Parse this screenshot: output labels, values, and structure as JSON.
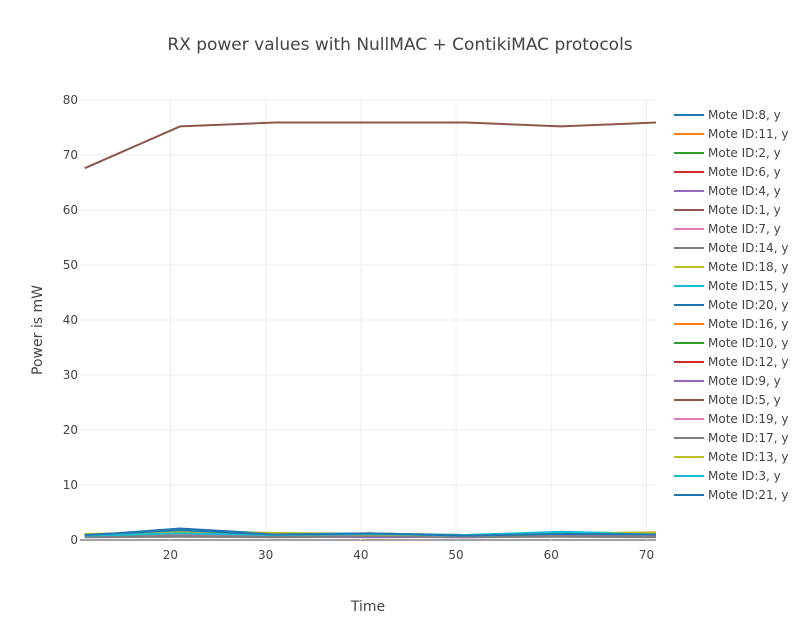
{
  "chart_data": {
    "type": "line",
    "title": "RX power values with NullMAC + ContikiMAC protocols",
    "xlabel": "Time",
    "ylabel": "Power is mW",
    "xlim": [
      10.5,
      71
    ],
    "ylim": [
      0,
      80
    ],
    "x_ticks": [
      "20",
      "30",
      "40",
      "50",
      "60",
      "70"
    ],
    "y_ticks": [
      "0",
      "10",
      "20",
      "30",
      "40",
      "50",
      "60",
      "70",
      "80"
    ],
    "grid": true,
    "legend_position": "right",
    "x": [
      11,
      21,
      31,
      41,
      51,
      61,
      71
    ],
    "series": [
      {
        "name": "Mote ID:8, y",
        "color": "#1f77b4",
        "values": [
          0.8,
          1.1,
          0.9,
          1.0,
          0.8,
          0.9,
          1.0
        ]
      },
      {
        "name": "Mote ID:11, y",
        "color": "#ff7f0e",
        "values": [
          1.0,
          1.3,
          1.1,
          1.2,
          0.9,
          1.0,
          1.1
        ]
      },
      {
        "name": "Mote ID:2, y",
        "color": "#2ca02c",
        "values": [
          0.9,
          1.5,
          1.0,
          1.1,
          0.8,
          1.2,
          0.9
        ]
      },
      {
        "name": "Mote ID:6, y",
        "color": "#d62728",
        "values": [
          0.7,
          1.2,
          0.8,
          1.0,
          0.7,
          0.9,
          0.8
        ]
      },
      {
        "name": "Mote ID:4, y",
        "color": "#9467bd",
        "values": [
          0.6,
          1.0,
          0.7,
          0.6,
          0.5,
          0.7,
          0.6
        ]
      },
      {
        "name": "Mote ID:1, y",
        "color": "#8c564b",
        "values": [
          67.6,
          75.2,
          75.9,
          75.9,
          75.9,
          75.2,
          75.9
        ]
      },
      {
        "name": "Mote ID:7, y",
        "color": "#e377c2",
        "values": [
          0.8,
          1.0,
          0.9,
          0.8,
          0.7,
          0.8,
          0.9
        ]
      },
      {
        "name": "Mote ID:14, y",
        "color": "#7f7f7f",
        "values": [
          0.5,
          0.6,
          0.5,
          0.6,
          0.5,
          0.6,
          0.5
        ]
      },
      {
        "name": "Mote ID:18, y",
        "color": "#bcbd22",
        "values": [
          1.0,
          1.6,
          1.3,
          1.1,
          0.9,
          1.2,
          1.4
        ]
      },
      {
        "name": "Mote ID:15, y",
        "color": "#17becf",
        "values": [
          0.9,
          1.3,
          1.0,
          1.2,
          0.9,
          1.5,
          1.1
        ]
      },
      {
        "name": "Mote ID:20, y",
        "color": "#1f77b4",
        "values": [
          0.8,
          2.1,
          1.1,
          1.0,
          0.8,
          0.9,
          1.0
        ]
      },
      {
        "name": "Mote ID:16, y",
        "color": "#ff7f0e",
        "values": [
          0.9,
          1.2,
          1.0,
          0.9,
          0.8,
          1.0,
          0.9
        ]
      },
      {
        "name": "Mote ID:10, y",
        "color": "#2ca02c",
        "values": [
          0.7,
          1.1,
          0.9,
          0.8,
          0.7,
          0.8,
          0.9
        ]
      },
      {
        "name": "Mote ID:12, y",
        "color": "#d62728",
        "values": [
          0.8,
          1.0,
          0.8,
          0.9,
          0.7,
          0.9,
          0.8
        ]
      },
      {
        "name": "Mote ID:9, y",
        "color": "#9467bd",
        "values": [
          0.6,
          0.9,
          0.7,
          0.5,
          0.6,
          0.7,
          0.6
        ]
      },
      {
        "name": "Mote ID:5, y",
        "color": "#8c564b",
        "values": [
          0.9,
          1.0,
          0.9,
          1.0,
          0.8,
          0.9,
          1.0
        ]
      },
      {
        "name": "Mote ID:19, y",
        "color": "#e377c2",
        "values": [
          0.7,
          0.8,
          0.7,
          0.8,
          0.6,
          0.7,
          0.8
        ]
      },
      {
        "name": "Mote ID:17, y",
        "color": "#7f7f7f",
        "values": [
          0.6,
          0.7,
          0.6,
          0.7,
          0.6,
          0.7,
          0.6
        ]
      },
      {
        "name": "Mote ID:13, y",
        "color": "#bcbd22",
        "values": [
          1.1,
          1.4,
          1.2,
          1.0,
          0.8,
          1.1,
          1.3
        ]
      },
      {
        "name": "Mote ID:3, y",
        "color": "#17becf",
        "values": [
          0.8,
          1.2,
          0.9,
          1.1,
          0.8,
          1.3,
          1.0
        ]
      },
      {
        "name": "Mote ID:21, y",
        "color": "#1f77b4",
        "values": [
          0.9,
          1.8,
          1.0,
          1.2,
          0.8,
          1.1,
          1.0
        ]
      }
    ]
  }
}
